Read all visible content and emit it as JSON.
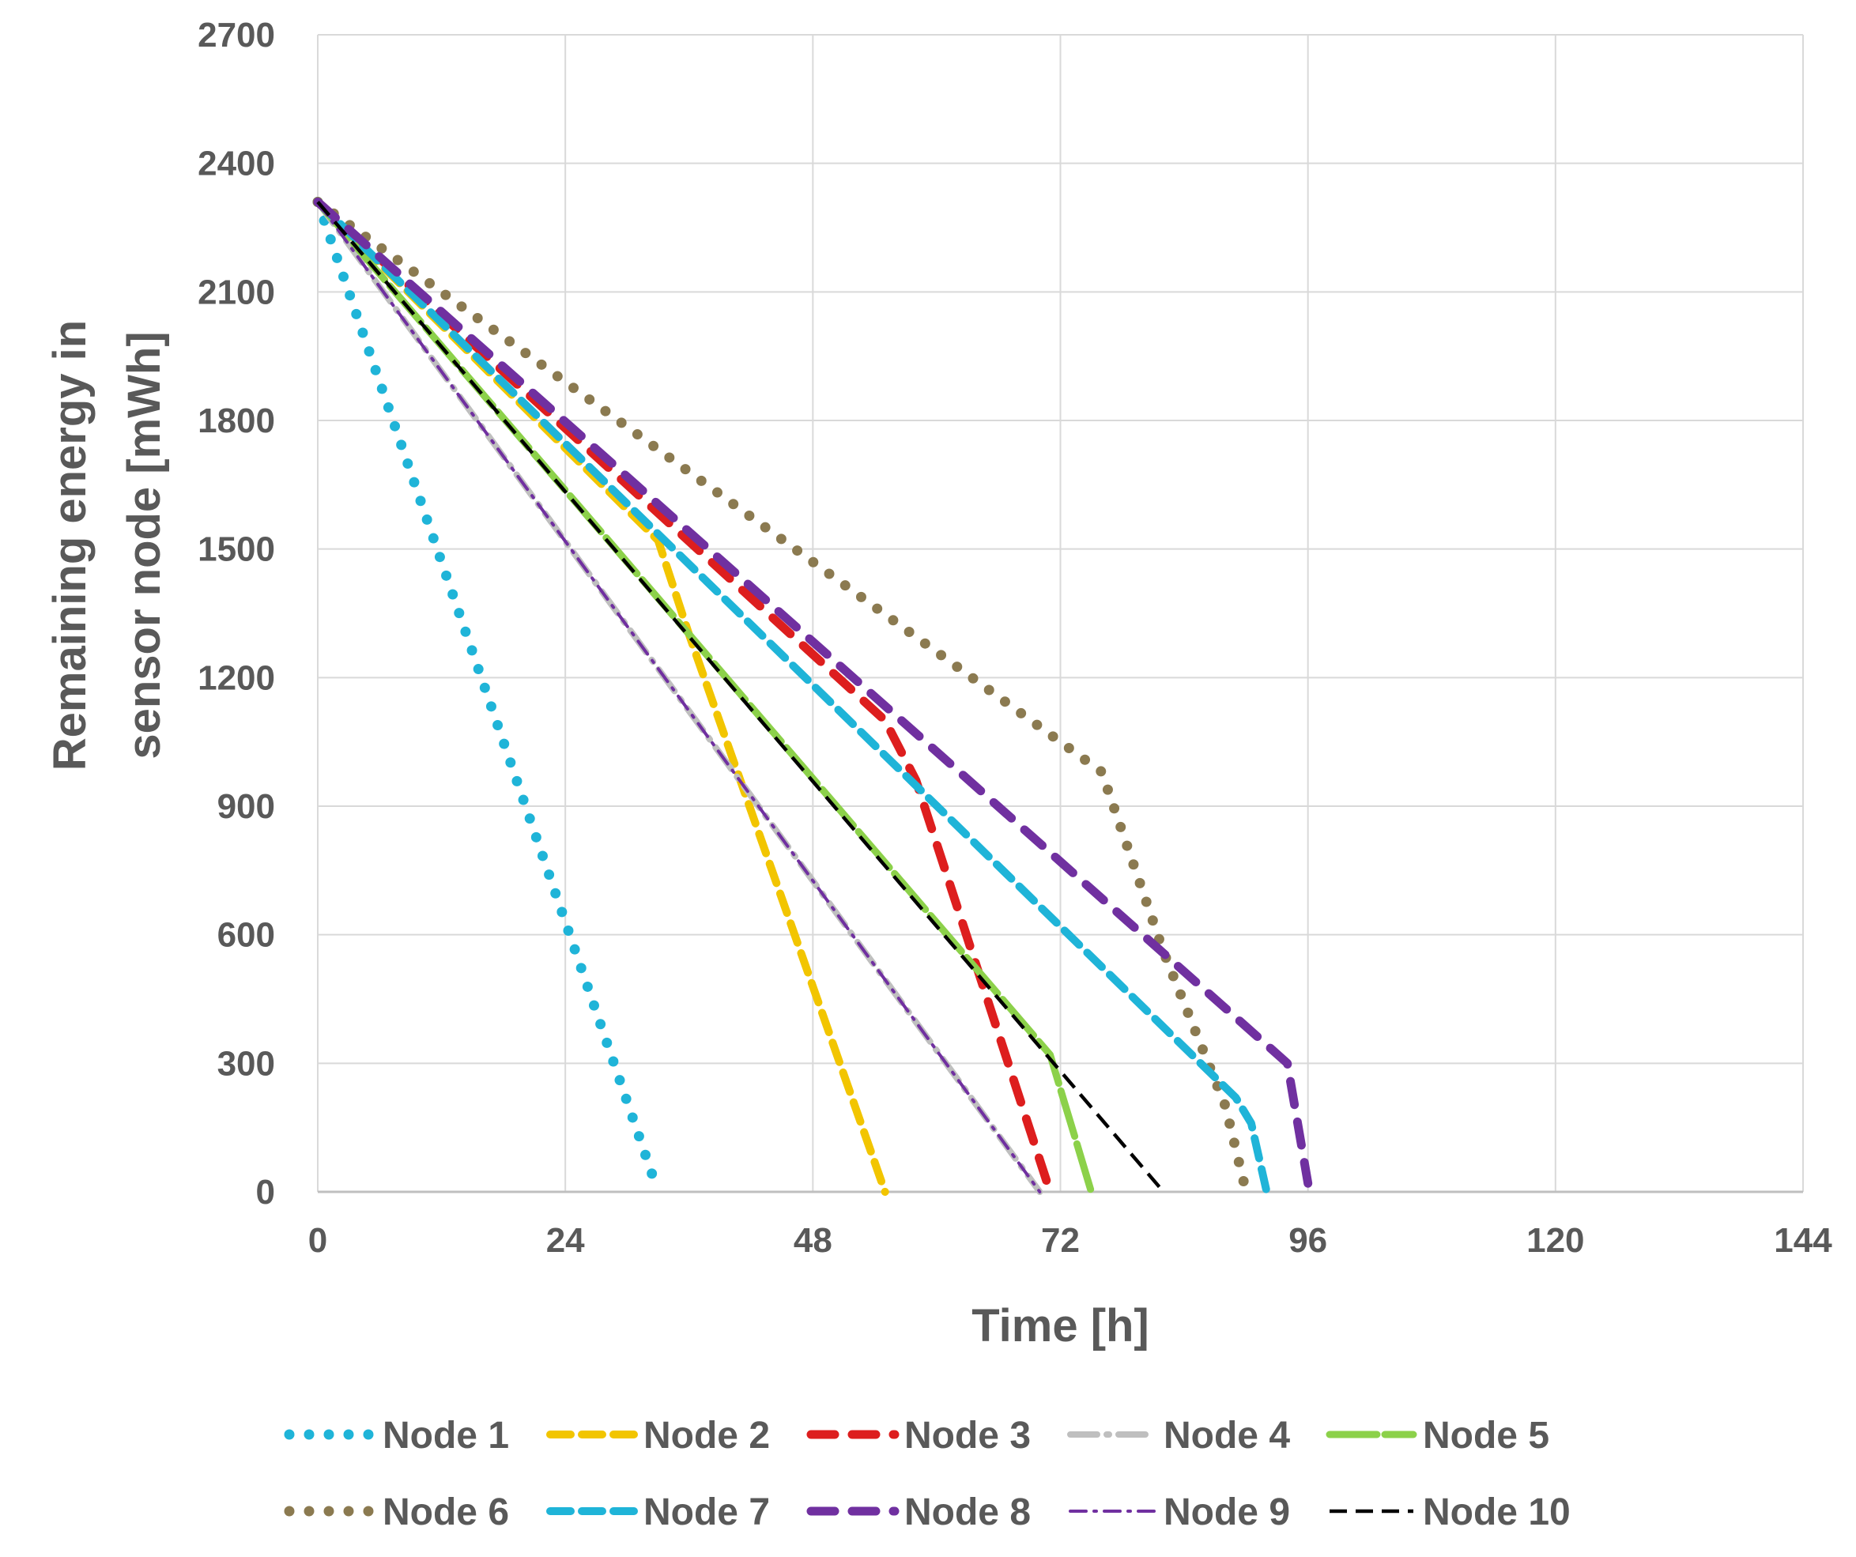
{
  "chart_data": {
    "type": "line",
    "title": "",
    "xlabel": "Time [h]",
    "ylabel": [
      "Remaining energy in",
      "sensor node [mWh]"
    ],
    "xlim": [
      0,
      144
    ],
    "ylim": [
      0,
      2700
    ],
    "xticks": [
      0,
      24,
      48,
      72,
      96,
      120,
      144
    ],
    "yticks": [
      0,
      300,
      600,
      900,
      1200,
      1500,
      1800,
      2100,
      2400,
      2700
    ],
    "grid": true,
    "legend_position": "bottom",
    "series": [
      {
        "name": "Node 1",
        "color": "#1FB4D8",
        "style": "dotted",
        "x": [
          0,
          33
        ],
        "y": [
          2310,
          0
        ]
      },
      {
        "name": "Node 2",
        "color": "#F2C500",
        "style": "dashed",
        "x": [
          0,
          33,
          36,
          55
        ],
        "y": [
          2310,
          1520,
          1300,
          0
        ]
      },
      {
        "name": "Node 3",
        "color": "#DD1E1E",
        "style": "longdash",
        "x": [
          0,
          55,
          58,
          71
        ],
        "y": [
          2310,
          1100,
          960,
          0
        ]
      },
      {
        "name": "Node 4",
        "color": "#BFBFBF",
        "style": "dashdot",
        "x": [
          0,
          70
        ],
        "y": [
          2310,
          0
        ]
      },
      {
        "name": "Node 5",
        "color": "#8CD14A",
        "style": "solid-dashed",
        "x": [
          0,
          71,
          72.5,
          73.5,
          75
        ],
        "y": [
          2310,
          320,
          200,
          120,
          0
        ]
      },
      {
        "name": "Node 6",
        "color": "#8B7A50",
        "style": "dotted",
        "x": [
          0,
          76,
          82,
          88,
          90
        ],
        "y": [
          2310,
          980,
          560,
          200,
          0
        ]
      },
      {
        "name": "Node 7",
        "color": "#1FB4D8",
        "style": "dashed",
        "x": [
          0,
          89,
          90.5,
          92
        ],
        "y": [
          2310,
          220,
          160,
          0
        ]
      },
      {
        "name": "Node 8",
        "color": "#7030A0",
        "style": "longdash",
        "x": [
          0,
          94,
          96
        ],
        "y": [
          2310,
          300,
          20
        ]
      },
      {
        "name": "Node 9",
        "color": "#7030A0",
        "style": "dashdot-thin",
        "x": [
          0,
          70
        ],
        "y": [
          2310,
          0
        ]
      },
      {
        "name": "Node 10",
        "color": "#000000",
        "style": "dashed-thin",
        "x": [
          0,
          82
        ],
        "y": [
          2310,
          0
        ]
      }
    ]
  }
}
